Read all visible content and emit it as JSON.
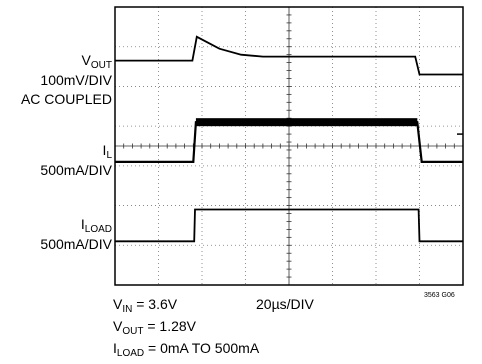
{
  "chart_data": {
    "type": "line",
    "x_divisions": 8,
    "y_divisions": 7,
    "grid": true,
    "x_scale": {
      "main": "20µs",
      "sub": "/DIV"
    },
    "channels": [
      {
        "name_main": "V",
        "name_sub": "OUT",
        "scale": "100mV/DIV",
        "coupling": "AC COUPLED",
        "points": [
          [
            0,
            1.35
          ],
          [
            1.78,
            1.35
          ],
          [
            1.88,
            0.75
          ],
          [
            2.4,
            1.05
          ],
          [
            2.9,
            1.2
          ],
          [
            3.4,
            1.25
          ],
          [
            6.9,
            1.25
          ],
          [
            7.0,
            1.7
          ],
          [
            8,
            1.7
          ]
        ]
      },
      {
        "name_main": "I",
        "name_sub": "L",
        "scale": "500mA/DIV",
        "points": [
          [
            0,
            3.9
          ],
          [
            1.8,
            3.9
          ],
          [
            1.86,
            2.9
          ],
          [
            6.95,
            2.9
          ],
          [
            7.05,
            3.9
          ],
          [
            8,
            3.9
          ]
        ]
      },
      {
        "name_main": "I",
        "name_sub": "LOAD",
        "scale": "500mA/DIV",
        "points": [
          [
            0,
            5.9
          ],
          [
            1.82,
            5.9
          ],
          [
            1.84,
            5.1
          ],
          [
            6.98,
            5.1
          ],
          [
            7.0,
            5.9
          ],
          [
            8,
            5.9
          ]
        ]
      }
    ],
    "conditions": [
      {
        "main": "V",
        "sub": "IN",
        "value": " = 3.6V"
      },
      {
        "main": "V",
        "sub": "OUT",
        "value": " = 1.28V"
      },
      {
        "main": "I",
        "sub": "LOAD",
        "value": " = 0mA TO 500mA"
      }
    ],
    "figure_id": "3563 G06"
  }
}
